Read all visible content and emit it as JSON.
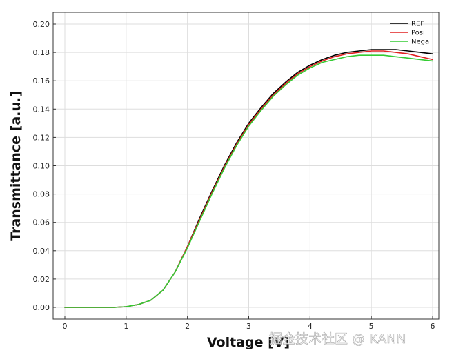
{
  "chart_data": {
    "type": "line",
    "xlabel": "Voltage [V]",
    "ylabel": "Transmittance [a.u.]",
    "xlim": [
      0,
      6
    ],
    "ylim": [
      0,
      0.2
    ],
    "xticks": [
      "0",
      "1",
      "2",
      "3",
      "4",
      "5",
      "6"
    ],
    "yticks": [
      "0.00",
      "0.02",
      "0.04",
      "0.06",
      "0.08",
      "0.10",
      "0.12",
      "0.14",
      "0.16",
      "0.18",
      "0.20"
    ],
    "grid": true,
    "legend_position": "top-right",
    "x": [
      0,
      0.2,
      0.4,
      0.6,
      0.8,
      1.0,
      1.2,
      1.4,
      1.6,
      1.8,
      2.0,
      2.2,
      2.4,
      2.6,
      2.8,
      3.0,
      3.2,
      3.4,
      3.6,
      3.8,
      4.0,
      4.2,
      4.4,
      4.6,
      4.8,
      5.0,
      5.2,
      5.4,
      5.6,
      5.8,
      6.0
    ],
    "series": [
      {
        "name": "REF",
        "color": "#000000",
        "values": [
          0,
          0,
          0,
          0,
          0,
          0.0005,
          0.002,
          0.005,
          0.012,
          0.025,
          0.043,
          0.063,
          0.082,
          0.1,
          0.116,
          0.13,
          0.141,
          0.151,
          0.159,
          0.166,
          0.171,
          0.175,
          0.178,
          0.18,
          0.181,
          0.182,
          0.182,
          0.182,
          0.181,
          0.18,
          0.179
        ]
      },
      {
        "name": "Posi",
        "color": "#e02020",
        "values": [
          0,
          0,
          0,
          0,
          0,
          0.0005,
          0.002,
          0.005,
          0.012,
          0.025,
          0.043,
          0.062,
          0.081,
          0.099,
          0.115,
          0.129,
          0.14,
          0.15,
          0.158,
          0.165,
          0.17,
          0.174,
          0.177,
          0.179,
          0.18,
          0.181,
          0.181,
          0.18,
          0.179,
          0.177,
          0.175
        ]
      },
      {
        "name": "Nega",
        "color": "#33cc33",
        "values": [
          0,
          0,
          0,
          0,
          0,
          0.0005,
          0.002,
          0.005,
          0.012,
          0.025,
          0.042,
          0.061,
          0.08,
          0.098,
          0.114,
          0.128,
          0.139,
          0.149,
          0.157,
          0.164,
          0.169,
          0.173,
          0.175,
          0.177,
          0.178,
          0.178,
          0.178,
          0.177,
          0.176,
          0.175,
          0.174
        ]
      }
    ]
  },
  "watermark": "掘金技术社区 @ KANN"
}
